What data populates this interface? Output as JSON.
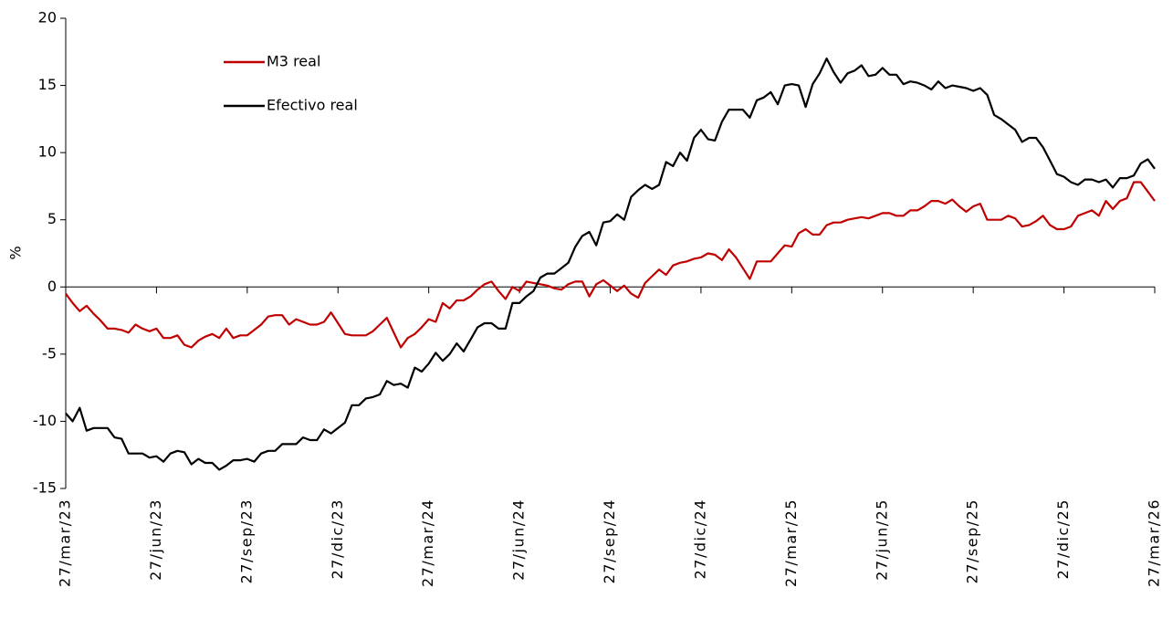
{
  "chart_data": {
    "type": "line",
    "ylabel": "%",
    "categories": [
      "27/mar/23",
      null,
      null,
      null,
      null,
      null,
      null,
      null,
      null,
      null,
      null,
      null,
      null,
      "27/jun/23",
      null,
      null,
      null,
      null,
      null,
      null,
      null,
      null,
      null,
      null,
      null,
      null,
      "27/sep/23",
      null,
      null,
      null,
      null,
      null,
      null,
      null,
      null,
      null,
      null,
      null,
      null,
      "27/dic/23",
      null,
      null,
      null,
      null,
      null,
      null,
      null,
      null,
      null,
      null,
      null,
      null,
      "27/mar/24",
      null,
      null,
      null,
      null,
      null,
      null,
      null,
      null,
      null,
      null,
      null,
      null,
      "27/jun/24",
      null,
      null,
      null,
      null,
      null,
      null,
      null,
      null,
      null,
      null,
      null,
      null,
      "27/sep/24",
      null,
      null,
      null,
      null,
      null,
      null,
      null,
      null,
      null,
      null,
      null,
      null,
      "27/dic/24",
      null,
      null,
      null,
      null,
      null,
      null,
      null,
      null,
      null,
      null,
      null,
      null,
      "27/mar/25",
      null,
      null,
      null,
      null,
      null,
      null,
      null,
      null,
      null,
      null,
      null,
      null,
      "27/jun/25",
      null,
      null,
      null,
      null,
      null,
      null,
      null,
      null,
      null,
      null,
      null,
      null,
      "27/sep/25",
      null,
      null,
      null,
      null,
      null,
      null,
      null,
      null,
      null,
      null,
      null,
      null,
      "27/dic/25",
      null,
      null,
      null,
      null,
      null,
      null,
      null,
      null,
      null,
      null,
      null,
      null,
      "27/mar/26"
    ],
    "series": [
      {
        "name": "M3 real",
        "color": "#c00000",
        "values": [
          -0.5,
          -1.2,
          -1.8,
          -1.4,
          -2,
          -2.5,
          -3.1,
          -3.1,
          -3.2,
          -3.4,
          -2.8,
          -3.1,
          -3.3,
          -3.1,
          -3.8,
          -3.8,
          -3.6,
          -4.3,
          -4.5,
          -4,
          -3.7,
          -3.5,
          -3.8,
          -3.1,
          -3.8,
          -3.6,
          -3.6,
          -3.2,
          -2.8,
          -2.2,
          -2.1,
          -2.1,
          -2.8,
          -2.4,
          -2.6,
          -2.8,
          -2.8,
          -2.6,
          -1.9,
          -2.7,
          -3.5,
          -3.6,
          -3.6,
          -3.6,
          -3.3,
          -2.8,
          -2.3,
          -3.4,
          -4.5,
          -3.8,
          -3.5,
          -3,
          -2.4,
          -2.6,
          -1.2,
          -1.6,
          -1,
          -1,
          -0.7,
          -0.2,
          0.2,
          0.4,
          -0.3,
          -0.9,
          0,
          -0.3,
          0.4,
          0.3,
          0.2,
          0.1,
          -0.1,
          -0.2,
          0.2,
          0.4,
          0.4,
          -0.7,
          0.2,
          0.5,
          0.1,
          -0.3,
          0.1,
          -0.5,
          -0.8,
          0.3,
          0.8,
          1.3,
          0.9,
          1.6,
          1.8,
          1.9,
          2.1,
          2.2,
          2.5,
          2.4,
          2,
          2.8,
          2.2,
          1.4,
          0.6,
          1.9,
          1.9,
          1.9,
          2.5,
          3.1,
          3,
          4,
          4.3,
          3.9,
          3.9,
          4.6,
          4.8,
          4.8,
          5,
          5.1,
          5.2,
          5.1,
          5.3,
          5.5,
          5.5,
          5.3,
          5.3,
          5.7,
          5.7,
          6,
          6.4,
          6.4,
          6.2,
          6.5,
          6,
          5.6,
          6,
          6.2,
          5,
          5,
          5,
          5.3,
          5.1,
          4.5,
          4.6,
          4.9,
          5.3,
          4.6,
          4.3,
          4.3,
          4.5,
          5.3,
          5.5,
          5.7,
          5.3,
          6.4,
          5.8,
          6.4,
          6.6,
          7.8,
          7.8,
          7.1,
          6.4
        ]
      },
      {
        "name": "Efectivo real",
        "color": "#000000",
        "values": [
          -9.4,
          -10,
          -9,
          -10.7,
          -10.5,
          -10.5,
          -10.5,
          -11.2,
          -11.3,
          -12.4,
          -12.4,
          -12.4,
          -12.7,
          -12.6,
          -13,
          -12.4,
          -12.2,
          -12.3,
          -13.2,
          -12.8,
          -13.1,
          -13.1,
          -13.6,
          -13.3,
          -12.9,
          -12.9,
          -12.8,
          -13,
          -12.4,
          -12.2,
          -12.2,
          -11.7,
          -11.7,
          -11.7,
          -11.2,
          -11.4,
          -11.4,
          -10.6,
          -10.9,
          -10.5,
          -10.1,
          -8.8,
          -8.8,
          -8.3,
          -8.2,
          -8,
          -7,
          -7.3,
          -7.2,
          -7.5,
          -6,
          -6.3,
          -5.7,
          -4.9,
          -5.5,
          -5,
          -4.2,
          -4.8,
          -3.9,
          -3,
          -2.7,
          -2.7,
          -3.1,
          -3.1,
          -1.2,
          -1.2,
          -0.7,
          -0.3,
          0.7,
          1,
          1,
          1.4,
          1.8,
          3,
          3.8,
          4.1,
          3.1,
          4.8,
          4.9,
          5.4,
          5,
          6.7,
          7.2,
          7.6,
          7.3,
          7.6,
          9.3,
          9,
          10,
          9.4,
          11.1,
          11.7,
          11,
          10.9,
          12.3,
          13.2,
          13.2,
          13.2,
          12.6,
          13.9,
          14.1,
          14.5,
          13.6,
          15,
          15.1,
          15,
          13.4,
          15.1,
          15.9,
          17,
          16,
          15.2,
          15.9,
          16.1,
          16.5,
          15.7,
          15.8,
          16.3,
          15.8,
          15.8,
          15.1,
          15.3,
          15.2,
          15,
          14.7,
          15.3,
          14.8,
          15,
          14.9,
          14.8,
          14.6,
          14.8,
          14.3,
          12.8,
          12.5,
          12.1,
          11.7,
          10.8,
          11.1,
          11.1,
          10.4,
          9.4,
          8.4,
          8.2,
          7.8,
          7.6,
          8,
          8,
          7.8,
          8,
          7.4,
          8.1,
          8.1,
          8.3,
          9.2,
          9.5,
          8.8
        ]
      }
    ],
    "ylim": [
      -15,
      20
    ],
    "yticks": [
      -15,
      -10,
      -5,
      0,
      5,
      10,
      15,
      20
    ],
    "grid": false,
    "legend": "upper left"
  }
}
